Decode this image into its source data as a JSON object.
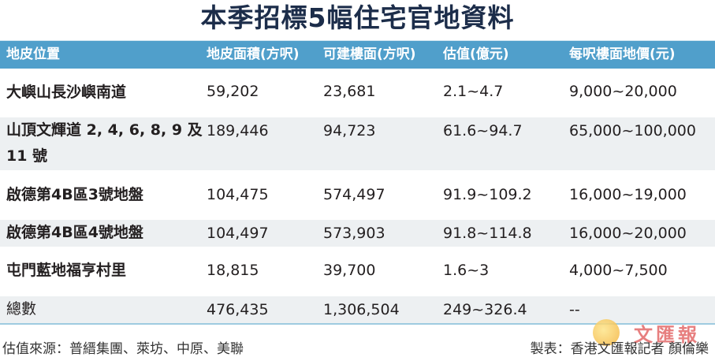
{
  "title": "本季招標5幅住宅官地資料",
  "headers": [
    "地皮位置",
    "地皮面積(方呎)",
    "可建樓面(方呎)",
    "估值(億元)",
    "每呎樓面地價(元)"
  ],
  "rows": [
    [
      "大嶼山長沙嶼南道",
      "59,202",
      "23,681",
      "2.1~4.7",
      "9,000~20,000"
    ],
    [
      "山頂文輝道 2, 4, 6, 8, 9 及 11 號",
      "189,446",
      "94,723",
      "61.6~94.7",
      "65,000~100,000"
    ],
    [
      "啟德第4B區3號地盤",
      "104,475",
      "574,497",
      "91.9~109.2",
      "16,000~19,000"
    ],
    [
      "啟德第4B區4號地盤",
      "104,497",
      "573,903",
      "91.8~114.8",
      "16,000~20,000"
    ],
    [
      "屯門藍地福亨村里",
      "18,815",
      "39,700",
      "1.6~3",
      "4,000~7,500"
    ]
  ],
  "total": [
    "總數",
    "476,435",
    "1,306,504",
    "249~326.4",
    "--"
  ],
  "footer": {
    "source": "估值來源：普縉集團、萊坊、中原、美聯",
    "credit": "製表：香港文匯報記者 顏倫樂",
    "logo_text": "文匯報"
  },
  "colors": {
    "header_bg": "#509fcb",
    "title": "#1c2d4a",
    "stripe": "#edf0f2"
  }
}
